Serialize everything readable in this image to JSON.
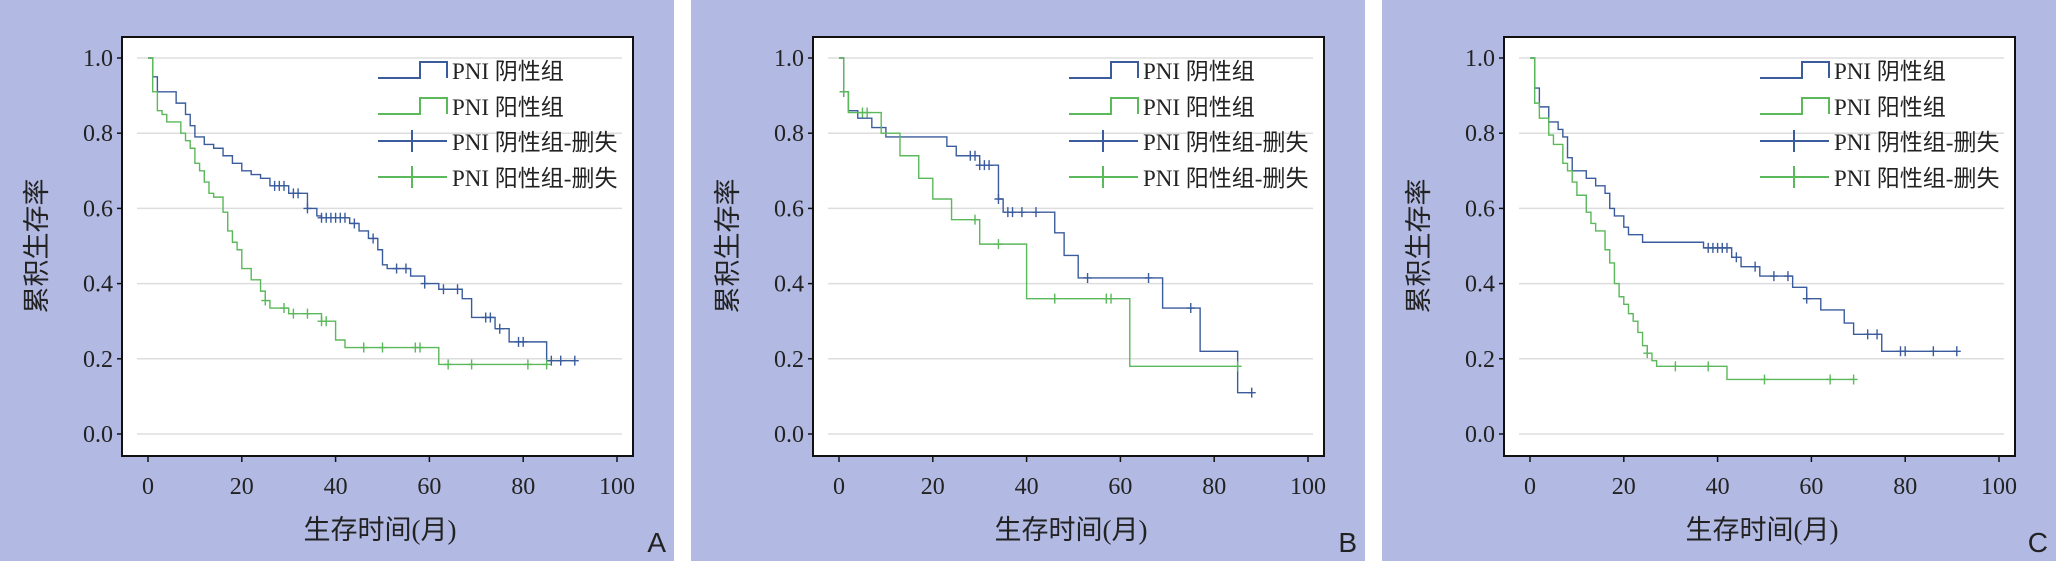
{
  "colors": {
    "background": "#b2bae3",
    "negative": "#3b5c9c",
    "positive": "#5bb85b",
    "grid": "#dddddd"
  },
  "chart_data": [
    {
      "type": "line",
      "panel_label": "A",
      "xlabel": "生存时间(月)",
      "ylabel": "累积生存率",
      "xlim": [
        0,
        100
      ],
      "ylim": [
        0,
        1
      ],
      "xticks": [
        "0",
        "20",
        "40",
        "60",
        "80",
        "100"
      ],
      "yticks": [
        "0.0",
        "0.2",
        "0.4",
        "0.6",
        "0.8",
        "1.0"
      ],
      "grid": true,
      "legend_position": "top-right",
      "legend": [
        "PNI 阴性组",
        "PNI 阳性组",
        "PNI 阴性组-删失",
        "PNI 阳性组-删失"
      ],
      "series": [
        {
          "name": "PNI 阴性组",
          "end": 91,
          "steps": [
            [
              0,
              1
            ],
            [
              1,
              0.95
            ],
            [
              2,
              0.91
            ],
            [
              6,
              0.88
            ],
            [
              8,
              0.85
            ],
            [
              9,
              0.82
            ],
            [
              10,
              0.79
            ],
            [
              12,
              0.77
            ],
            [
              14,
              0.76
            ],
            [
              16,
              0.74
            ],
            [
              18,
              0.72
            ],
            [
              20,
              0.7
            ],
            [
              22,
              0.69
            ],
            [
              24,
              0.68
            ],
            [
              26,
              0.66
            ],
            [
              30,
              0.64
            ],
            [
              34,
              0.6
            ],
            [
              36,
              0.58
            ],
            [
              37,
              0.575
            ],
            [
              43,
              0.56
            ],
            [
              45,
              0.54
            ],
            [
              47,
              0.52
            ],
            [
              49,
              0.49
            ],
            [
              50,
              0.45
            ],
            [
              51,
              0.44
            ],
            [
              56,
              0.42
            ],
            [
              59,
              0.4
            ],
            [
              62,
              0.385
            ],
            [
              67,
              0.36
            ],
            [
              69,
              0.31
            ],
            [
              74,
              0.28
            ],
            [
              77,
              0.245
            ],
            [
              85,
              0.195
            ]
          ],
          "censored": [
            27,
            28,
            29,
            31,
            32,
            34,
            37,
            38,
            39,
            40,
            41,
            42,
            44,
            48,
            53,
            55,
            59,
            63,
            66,
            72,
            73,
            75,
            79,
            80,
            86,
            88,
            91
          ]
        },
        {
          "name": "PNI 阳性组",
          "end": 85,
          "steps": [
            [
              0,
              1
            ],
            [
              1,
              0.91
            ],
            [
              2,
              0.86
            ],
            [
              3,
              0.85
            ],
            [
              4,
              0.83
            ],
            [
              7,
              0.8
            ],
            [
              8,
              0.78
            ],
            [
              9,
              0.76
            ],
            [
              10,
              0.72
            ],
            [
              11,
              0.7
            ],
            [
              12,
              0.67
            ],
            [
              13,
              0.64
            ],
            [
              14,
              0.63
            ],
            [
              16,
              0.59
            ],
            [
              17,
              0.54
            ],
            [
              18,
              0.51
            ],
            [
              19,
              0.49
            ],
            [
              20,
              0.44
            ],
            [
              22,
              0.41
            ],
            [
              24,
              0.38
            ],
            [
              25,
              0.355
            ],
            [
              26,
              0.335
            ],
            [
              30,
              0.32
            ],
            [
              37,
              0.3
            ],
            [
              40,
              0.25
            ],
            [
              42,
              0.23
            ],
            [
              62,
              0.185
            ]
          ],
          "censored": [
            25,
            29,
            31,
            34,
            37,
            38,
            46,
            50,
            57,
            58,
            64,
            69,
            81,
            85
          ]
        }
      ]
    },
    {
      "type": "line",
      "panel_label": "B",
      "xlabel": "生存时间(月)",
      "ylabel": "累积生存率",
      "xlim": [
        0,
        100
      ],
      "ylim": [
        0,
        1
      ],
      "xticks": [
        "0",
        "20",
        "40",
        "60",
        "80",
        "100"
      ],
      "yticks": [
        "0.0",
        "0.2",
        "0.4",
        "0.6",
        "0.8",
        "1.0"
      ],
      "grid": true,
      "legend_position": "top-right",
      "legend": [
        "PNI 阴性组",
        "PNI 阳性组",
        "PNI 阴性组-删失",
        "PNI 阳性组-删失"
      ],
      "series": [
        {
          "name": "PNI 阴性组",
          "end": 88,
          "steps": [
            [
              0,
              1
            ],
            [
              1,
              0.91
            ],
            [
              2,
              0.86
            ],
            [
              4,
              0.84
            ],
            [
              7,
              0.815
            ],
            [
              10,
              0.79
            ],
            [
              23,
              0.765
            ],
            [
              25,
              0.74
            ],
            [
              30,
              0.715
            ],
            [
              34,
              0.625
            ],
            [
              35,
              0.59
            ],
            [
              46,
              0.535
            ],
            [
              48,
              0.475
            ],
            [
              51,
              0.415
            ],
            [
              69,
              0.335
            ],
            [
              77,
              0.22
            ],
            [
              85,
              0.11
            ]
          ],
          "censored": [
            1,
            28,
            29,
            30,
            31,
            32,
            34,
            36,
            37,
            39,
            42,
            53,
            66,
            75,
            88
          ]
        },
        {
          "name": "PNI 阳性组",
          "end": 85,
          "steps": [
            [
              0,
              1
            ],
            [
              1,
              0.91
            ],
            [
              2,
              0.855
            ],
            [
              9,
              0.8
            ],
            [
              13,
              0.74
            ],
            [
              17,
              0.68
            ],
            [
              20,
              0.625
            ],
            [
              24,
              0.57
            ],
            [
              30,
              0.505
            ],
            [
              40,
              0.36
            ],
            [
              62,
              0.18
            ]
          ],
          "censored": [
            1,
            5,
            6,
            29,
            34,
            46,
            57,
            58,
            85
          ]
        }
      ]
    },
    {
      "type": "line",
      "panel_label": "C",
      "xlabel": "生存时间(月)",
      "ylabel": "累积生存率",
      "xlim": [
        0,
        100
      ],
      "ylim": [
        0,
        1
      ],
      "xticks": [
        "0",
        "20",
        "40",
        "60",
        "80",
        "100"
      ],
      "yticks": [
        "0.0",
        "0.2",
        "0.4",
        "0.6",
        "0.8",
        "1.0"
      ],
      "grid": true,
      "legend_position": "top-right",
      "legend": [
        "PNI 阴性组",
        "PNI 阳性组",
        "PNI 阴性组-删失",
        "PNI 阳性组-删失"
      ],
      "series": [
        {
          "name": "PNI 阴性组",
          "end": 91,
          "steps": [
            [
              0,
              1
            ],
            [
              1,
              0.92
            ],
            [
              2,
              0.87
            ],
            [
              4,
              0.83
            ],
            [
              6,
              0.81
            ],
            [
              7,
              0.79
            ],
            [
              8,
              0.735
            ],
            [
              9,
              0.7
            ],
            [
              12,
              0.68
            ],
            [
              14,
              0.66
            ],
            [
              16,
              0.64
            ],
            [
              17,
              0.6
            ],
            [
              18,
              0.58
            ],
            [
              20,
              0.55
            ],
            [
              21,
              0.53
            ],
            [
              24,
              0.51
            ],
            [
              37,
              0.495
            ],
            [
              43,
              0.47
            ],
            [
              45,
              0.445
            ],
            [
              49,
              0.42
            ],
            [
              56,
              0.39
            ],
            [
              59,
              0.36
            ],
            [
              62,
              0.33
            ],
            [
              67,
              0.295
            ],
            [
              69,
              0.265
            ],
            [
              75,
              0.22
            ]
          ],
          "censored": [
            38,
            39,
            40,
            41,
            42,
            44,
            48,
            52,
            55,
            59,
            72,
            74,
            79,
            80,
            86,
            91
          ]
        },
        {
          "name": "PNI 阳性组",
          "end": 69,
          "steps": [
            [
              0,
              1
            ],
            [
              1,
              0.88
            ],
            [
              2,
              0.84
            ],
            [
              4,
              0.795
            ],
            [
              5,
              0.77
            ],
            [
              7,
              0.72
            ],
            [
              8,
              0.7
            ],
            [
              9,
              0.67
            ],
            [
              10,
              0.635
            ],
            [
              12,
              0.59
            ],
            [
              13,
              0.56
            ],
            [
              14,
              0.54
            ],
            [
              16,
              0.49
            ],
            [
              17,
              0.455
            ],
            [
              18,
              0.4
            ],
            [
              19,
              0.365
            ],
            [
              20,
              0.345
            ],
            [
              21,
              0.32
            ],
            [
              22,
              0.3
            ],
            [
              23,
              0.27
            ],
            [
              24,
              0.235
            ],
            [
              25,
              0.215
            ],
            [
              26,
              0.195
            ],
            [
              27,
              0.18
            ],
            [
              42,
              0.145
            ]
          ],
          "censored": [
            25,
            31,
            38,
            50,
            64,
            69
          ]
        }
      ]
    }
  ]
}
